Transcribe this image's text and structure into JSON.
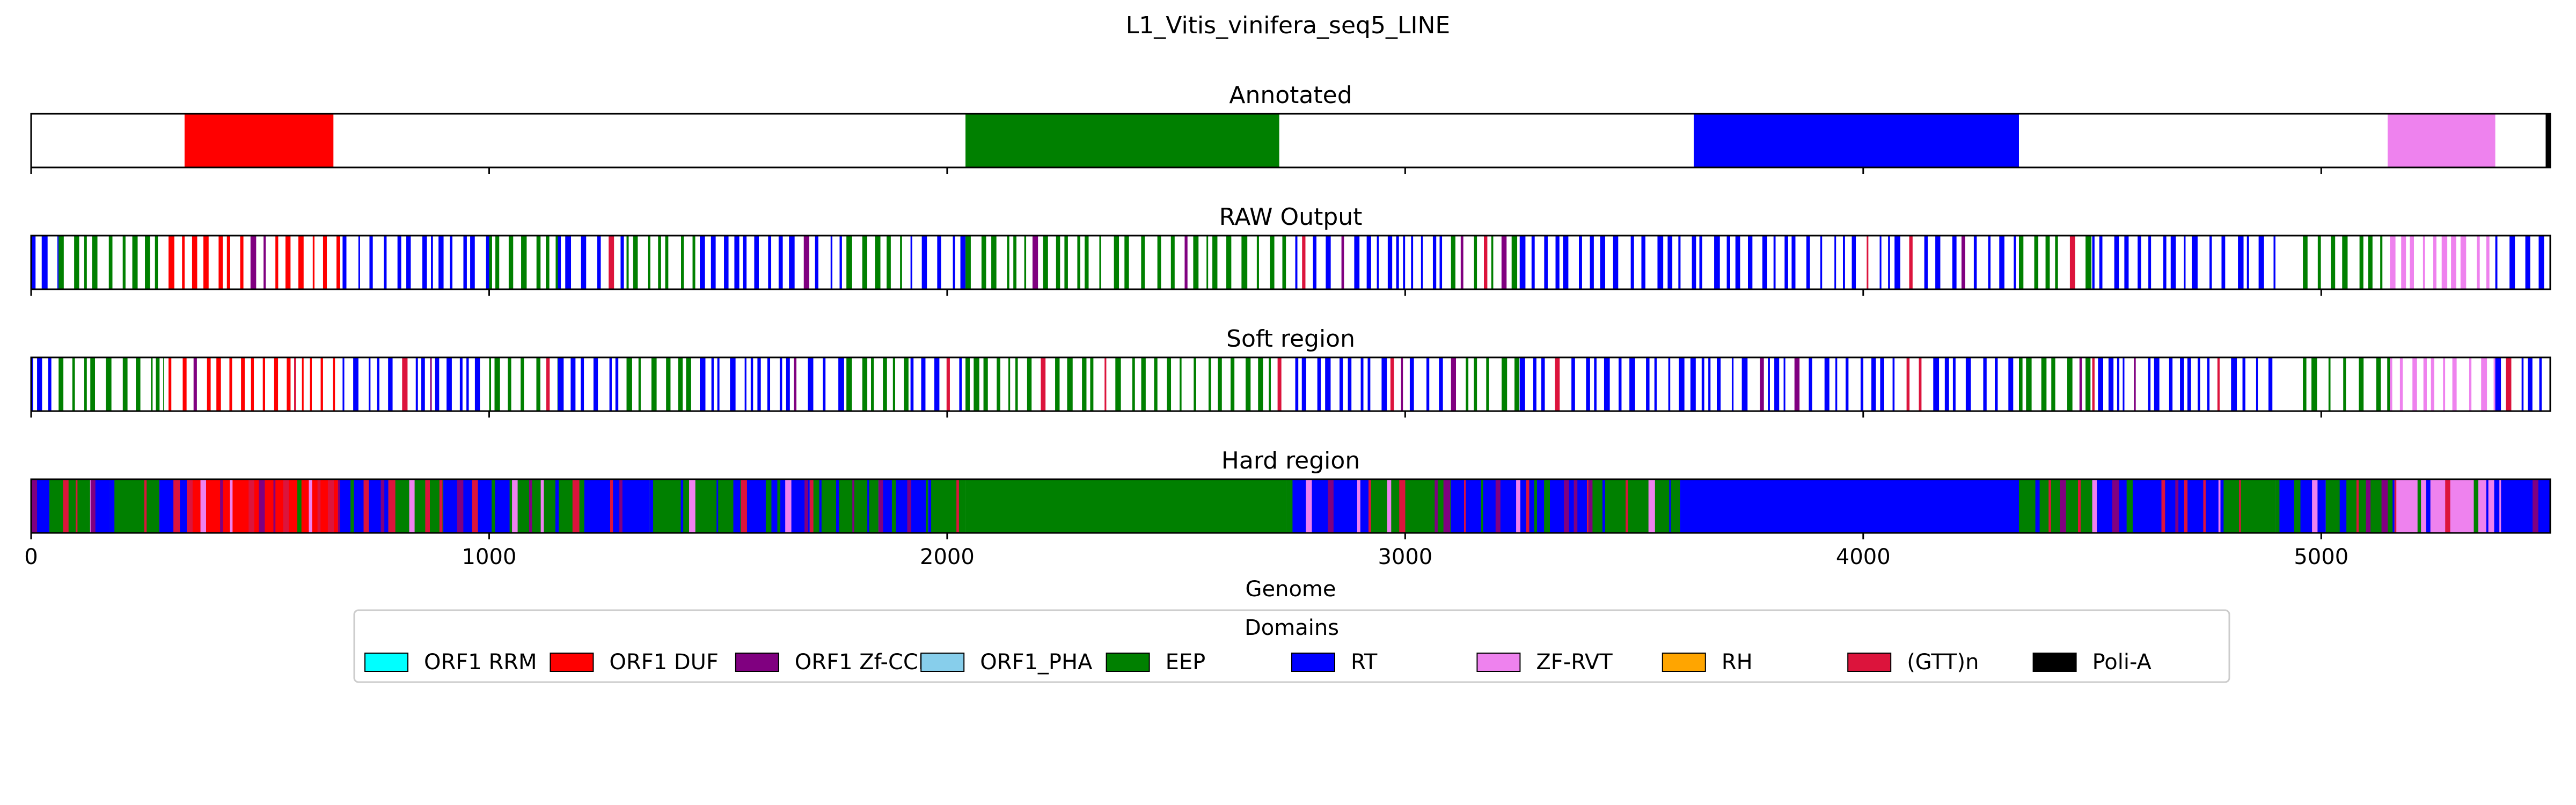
{
  "figure_title": "L1_Vitis_vinifera_seq5_LINE",
  "chart_data": {
    "type": "heatmap",
    "xlabel": "Genome",
    "xlim": [
      0,
      5500
    ],
    "x_ticks": [
      0,
      1000,
      2000,
      3000,
      4000,
      5000
    ],
    "domain_colors": {
      "ORF1 RRM": "#00ffff",
      "ORF1 DUF": "#ff0000",
      "ORF1 Zf-CCHC": "#800080",
      "ORF1_PHA": "#87ceeb",
      "EEP": "#008000",
      "RT": "#0000ff",
      "ZF-RVT": "#ee82ee",
      "RH": "#ffa500",
      "(GTT)n": "#dc143c",
      "Poli-A": "#000000"
    },
    "tracks": [
      {
        "title": "Annotated",
        "segments": [
          {
            "domain": "ORF1 DUF",
            "start": 335,
            "end": 660
          },
          {
            "domain": "EEP",
            "start": 2040,
            "end": 2725
          },
          {
            "domain": "RT",
            "start": 3630,
            "end": 4340
          },
          {
            "domain": "ZF-RVT",
            "start": 5145,
            "end": 5380
          },
          {
            "domain": "Poli-A",
            "start": 5490,
            "end": 5500
          }
        ]
      },
      {
        "title": "RAW Output",
        "mode": "sparse",
        "segments": [
          {
            "domain": "RT",
            "start": 0,
            "end": 60
          },
          {
            "domain": "EEP",
            "start": 60,
            "end": 290
          },
          {
            "domain": "ORF1 DUF",
            "start": 300,
            "end": 680
          },
          {
            "domain": "RT",
            "start": 680,
            "end": 1000
          },
          {
            "domain": "EEP",
            "start": 1000,
            "end": 1150
          },
          {
            "domain": "RT",
            "start": 1150,
            "end": 1300
          },
          {
            "domain": "EEP",
            "start": 1300,
            "end": 1460
          },
          {
            "domain": "RT",
            "start": 1460,
            "end": 1780
          },
          {
            "domain": "EEP",
            "start": 1780,
            "end": 1920
          },
          {
            "domain": "RT",
            "start": 1920,
            "end": 2040
          },
          {
            "domain": "EEP",
            "start": 2040,
            "end": 2740
          },
          {
            "domain": "RT",
            "start": 2760,
            "end": 3100
          },
          {
            "domain": "EEP",
            "start": 3100,
            "end": 3250
          },
          {
            "domain": "RT",
            "start": 3250,
            "end": 3630
          },
          {
            "domain": "RT",
            "start": 3630,
            "end": 4340
          },
          {
            "domain": "EEP",
            "start": 4340,
            "end": 4500
          },
          {
            "domain": "RT",
            "start": 4500,
            "end": 4900
          },
          {
            "domain": "EEP",
            "start": 4960,
            "end": 5150
          },
          {
            "domain": "ZF-RVT",
            "start": 5150,
            "end": 5380
          },
          {
            "domain": "RT",
            "start": 5380,
            "end": 5500
          }
        ]
      },
      {
        "title": "Soft region",
        "mode": "sparse",
        "segments": [
          {
            "domain": "RT",
            "start": 0,
            "end": 60
          },
          {
            "domain": "EEP",
            "start": 60,
            "end": 290
          },
          {
            "domain": "ORF1 DUF",
            "start": 300,
            "end": 680
          },
          {
            "domain": "RT",
            "start": 680,
            "end": 1000
          },
          {
            "domain": "EEP",
            "start": 1000,
            "end": 1150
          },
          {
            "domain": "RT",
            "start": 1150,
            "end": 1300
          },
          {
            "domain": "EEP",
            "start": 1300,
            "end": 1460
          },
          {
            "domain": "RT",
            "start": 1460,
            "end": 1780
          },
          {
            "domain": "EEP",
            "start": 1780,
            "end": 1920
          },
          {
            "domain": "RT",
            "start": 1920,
            "end": 2040
          },
          {
            "domain": "EEP",
            "start": 2040,
            "end": 2740
          },
          {
            "domain": "RT",
            "start": 2760,
            "end": 3100
          },
          {
            "domain": "EEP",
            "start": 3100,
            "end": 3250
          },
          {
            "domain": "RT",
            "start": 3250,
            "end": 3630
          },
          {
            "domain": "RT",
            "start": 3630,
            "end": 4340
          },
          {
            "domain": "EEP",
            "start": 4340,
            "end": 4500
          },
          {
            "domain": "RT",
            "start": 4500,
            "end": 4900
          },
          {
            "domain": "EEP",
            "start": 4960,
            "end": 5150
          },
          {
            "domain": "ZF-RVT",
            "start": 5150,
            "end": 5380
          },
          {
            "domain": "RT",
            "start": 5380,
            "end": 5500
          }
        ]
      },
      {
        "title": "Hard region",
        "mode": "dense",
        "segments": [
          {
            "domain": "RT",
            "start": 0,
            "end": 40
          },
          {
            "domain": "EEP",
            "start": 40,
            "end": 130
          },
          {
            "domain": "RT",
            "start": 130,
            "end": 170
          },
          {
            "domain": "EEP",
            "start": 170,
            "end": 280
          },
          {
            "domain": "RT",
            "start": 280,
            "end": 340
          },
          {
            "domain": "ORF1 DUF",
            "start": 340,
            "end": 670
          },
          {
            "domain": "RT",
            "start": 670,
            "end": 780
          },
          {
            "domain": "EEP",
            "start": 780,
            "end": 900
          },
          {
            "domain": "RT",
            "start": 900,
            "end": 1050
          },
          {
            "domain": "EEP",
            "start": 1050,
            "end": 1200
          },
          {
            "domain": "RT",
            "start": 1200,
            "end": 1350
          },
          {
            "domain": "EEP",
            "start": 1350,
            "end": 1550
          },
          {
            "domain": "RT",
            "start": 1550,
            "end": 1700
          },
          {
            "domain": "EEP",
            "start": 1700,
            "end": 1850
          },
          {
            "domain": "RT",
            "start": 1850,
            "end": 1960
          },
          {
            "domain": "EEP",
            "start": 1960,
            "end": 2040
          },
          {
            "domain": "EEP",
            "start": 2040,
            "end": 2740
          },
          {
            "domain": "RT",
            "start": 2740,
            "end": 2920
          },
          {
            "domain": "EEP",
            "start": 2920,
            "end": 3100
          },
          {
            "domain": "RT",
            "start": 3100,
            "end": 3400
          },
          {
            "domain": "EEP",
            "start": 3400,
            "end": 3600
          },
          {
            "domain": "RT",
            "start": 3600,
            "end": 4340
          },
          {
            "domain": "EEP",
            "start": 4340,
            "end": 4500
          },
          {
            "domain": "RT",
            "start": 4500,
            "end": 4780
          },
          {
            "domain": "EEP",
            "start": 4780,
            "end": 4900
          },
          {
            "domain": "RT",
            "start": 4900,
            "end": 5010
          },
          {
            "domain": "EEP",
            "start": 5010,
            "end": 5160
          },
          {
            "domain": "ZF-RVT",
            "start": 5160,
            "end": 5370
          },
          {
            "domain": "RT",
            "start": 5370,
            "end": 5500
          }
        ]
      }
    ],
    "legend": {
      "title": "Domains",
      "placement": "bottom-center",
      "entries": [
        "ORF1 RRM",
        "ORF1 DUF",
        "ORF1 Zf-CCHC",
        "ORF1_PHA",
        "EEP",
        "RT",
        "ZF-RVT",
        "RH",
        "(GTT)n",
        "Poli-A"
      ]
    }
  }
}
